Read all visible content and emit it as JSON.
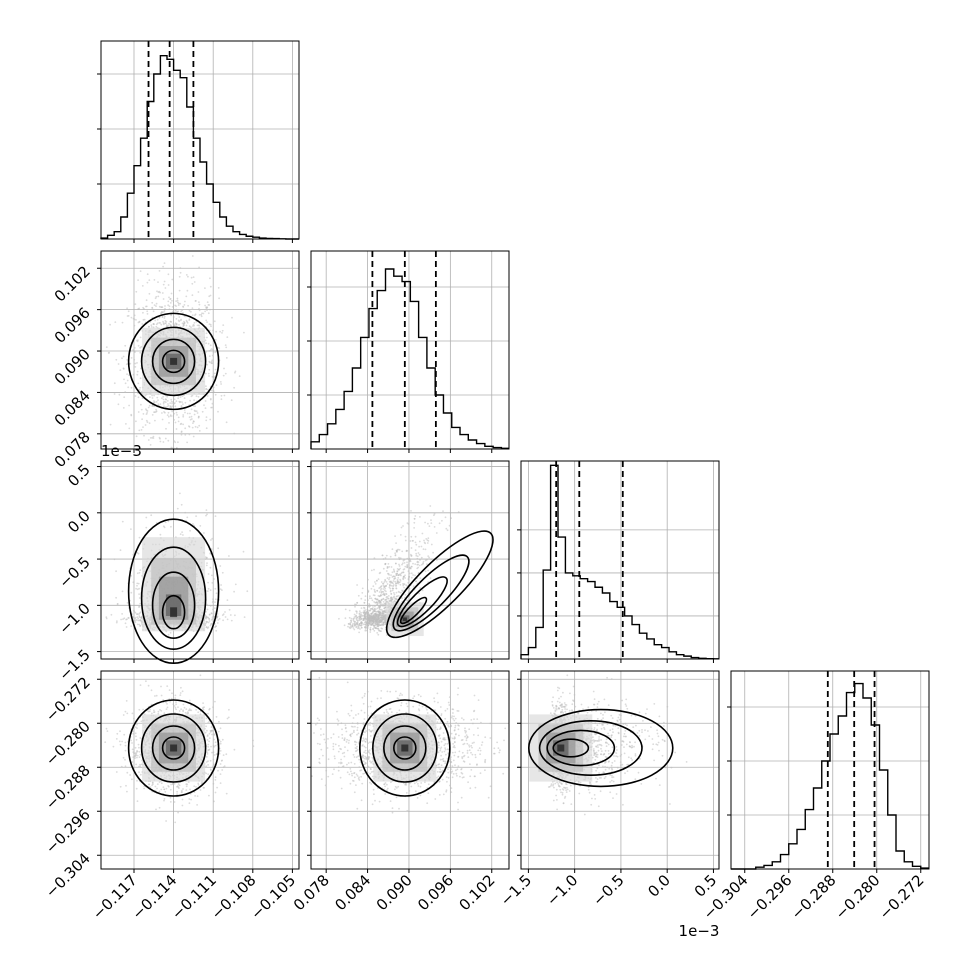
{
  "chart_data": {
    "type": "corner",
    "colors": {
      "line": "#000000",
      "grid": "#b0b0b0",
      "scatter": "#bdbdbd"
    },
    "params": [
      {
        "key": "p0",
        "range": [
          -0.1195,
          -0.1045
        ],
        "ticks": [
          -0.117,
          -0.114,
          -0.111,
          -0.108,
          -0.105
        ],
        "tick_labels": [
          "−0.117",
          "−0.114",
          "−0.111",
          "−0.108",
          "−0.105"
        ],
        "quantiles": [
          -0.1159,
          -0.1143,
          -0.1125
        ],
        "offset_label": ""
      },
      {
        "key": "p1",
        "range": [
          0.0758,
          0.1045
        ],
        "ticks": [
          0.078,
          0.084,
          0.09,
          0.096,
          0.102
        ],
        "tick_labels": [
          "0.078",
          "0.084",
          "0.090",
          "0.096",
          "0.102"
        ],
        "quantiles": [
          0.0847,
          0.0894,
          0.0939
        ],
        "offset_label": ""
      },
      {
        "key": "p2",
        "range": [
          -1.58,
          0.56
        ],
        "ticks": [
          -1.5,
          -1.0,
          -0.5,
          0.0,
          0.5
        ],
        "tick_labels": [
          "−1.5",
          "−1.0",
          "−0.5",
          "0.0",
          "0.5"
        ],
        "quantiles": [
          -1.2,
          -0.95,
          -0.48
        ],
        "offset_label": "1e−3"
      },
      {
        "key": "p3",
        "range": [
          -0.3065,
          -0.2705
        ],
        "ticks": [
          -0.304,
          -0.296,
          -0.288,
          -0.28,
          -0.272
        ],
        "tick_labels": [
          "−0.304",
          "−0.296",
          "−0.288",
          "−0.280",
          "−0.272"
        ],
        "quantiles": [
          -0.2889,
          -0.2841,
          -0.2804
        ],
        "offset_label": ""
      }
    ],
    "histograms": [
      {
        "param": "p0",
        "max": 1.08,
        "bin_edges": [
          -0.1195,
          -0.119,
          -0.1185,
          -0.118,
          -0.1175,
          -0.117,
          -0.1165,
          -0.116,
          -0.1155,
          -0.115,
          -0.1145,
          -0.114,
          -0.1135,
          -0.113,
          -0.1125,
          -0.112,
          -0.1115,
          -0.111,
          -0.1105,
          -0.11,
          -0.1095,
          -0.109,
          -0.1085,
          -0.108,
          -0.1075,
          -0.107,
          -0.1065,
          -0.106,
          -0.1055,
          -0.105,
          -0.1045
        ],
        "counts": [
          0.005,
          0.02,
          0.04,
          0.12,
          0.25,
          0.4,
          0.55,
          0.75,
          0.9,
          1.0,
          0.98,
          0.92,
          0.88,
          0.72,
          0.55,
          0.42,
          0.3,
          0.2,
          0.12,
          0.07,
          0.04,
          0.025,
          0.015,
          0.01,
          0.005,
          0.003,
          0.002,
          0.001,
          0.0,
          0.0
        ]
      },
      {
        "param": "p1",
        "max": 1.1,
        "bin_edges": [
          0.0758,
          0.077,
          0.0782,
          0.0794,
          0.0806,
          0.0818,
          0.083,
          0.0842,
          0.0854,
          0.0866,
          0.0878,
          0.089,
          0.0902,
          0.0914,
          0.0926,
          0.0938,
          0.095,
          0.0962,
          0.0974,
          0.0986,
          0.0998,
          0.101,
          0.1022,
          0.1034,
          0.1045
        ],
        "counts": [
          0.04,
          0.08,
          0.14,
          0.22,
          0.32,
          0.45,
          0.62,
          0.78,
          0.88,
          1.0,
          0.96,
          0.93,
          0.82,
          0.62,
          0.45,
          0.3,
          0.2,
          0.12,
          0.08,
          0.05,
          0.03,
          0.015,
          0.008,
          0.004
        ]
      },
      {
        "param": "p2",
        "max": 1.38,
        "bin_edges": [
          -1.58,
          -1.5,
          -1.42,
          -1.34,
          -1.26,
          -1.18,
          -1.1,
          -1.02,
          -0.94,
          -0.86,
          -0.78,
          -0.7,
          -0.62,
          -0.54,
          -0.46,
          -0.38,
          -0.3,
          -0.22,
          -0.14,
          -0.06,
          0.02,
          0.1,
          0.18,
          0.26,
          0.34,
          0.42,
          0.5,
          0.56
        ],
        "counts": [
          0.03,
          0.08,
          0.22,
          0.62,
          1.35,
          0.85,
          0.6,
          0.58,
          0.56,
          0.54,
          0.5,
          0.46,
          0.4,
          0.36,
          0.3,
          0.24,
          0.18,
          0.14,
          0.1,
          0.08,
          0.05,
          0.03,
          0.02,
          0.01,
          0.005,
          0.002,
          0.001
        ]
      },
      {
        "param": "p3",
        "max": 1.1,
        "bin_edges": [
          -0.3065,
          -0.305,
          -0.3035,
          -0.302,
          -0.3005,
          -0.299,
          -0.2975,
          -0.296,
          -0.2945,
          -0.293,
          -0.2915,
          -0.29,
          -0.2885,
          -0.287,
          -0.2855,
          -0.284,
          -0.2825,
          -0.281,
          -0.2795,
          -0.278,
          -0.2765,
          -0.275,
          -0.2735,
          -0.272,
          -0.2705
        ],
        "counts": [
          0.0,
          0.0,
          0.0,
          0.01,
          0.02,
          0.04,
          0.08,
          0.14,
          0.22,
          0.33,
          0.45,
          0.6,
          0.75,
          0.85,
          0.98,
          1.03,
          0.95,
          0.8,
          0.55,
          0.3,
          0.1,
          0.04,
          0.015,
          0.005
        ]
      }
    ],
    "joint": [
      {
        "x": "p0",
        "y": "p1",
        "cx": -0.114,
        "cy": 0.0885,
        "sx": 0.00135,
        "sy": 0.0042
      },
      {
        "x": "p0",
        "y": "p2",
        "cx": -0.114,
        "cy": -0.95,
        "sx": 0.00135,
        "sy": 0.35
      },
      {
        "x": "p1",
        "y": "p2",
        "cx": 0.0894,
        "cy": -0.95,
        "sx": 0.0042,
        "sy": 0.35
      },
      {
        "x": "p0",
        "y": "p3",
        "cx": -0.114,
        "cy": -0.2845,
        "sx": 0.00135,
        "sy": 0.0032
      },
      {
        "x": "p1",
        "y": "p3",
        "cx": 0.0894,
        "cy": -0.2845,
        "sx": 0.0042,
        "sy": 0.0032
      },
      {
        "x": "p2",
        "y": "p3",
        "cx": -0.95,
        "cy": -0.2845,
        "sx": 0.35,
        "sy": 0.0032
      }
    ]
  }
}
